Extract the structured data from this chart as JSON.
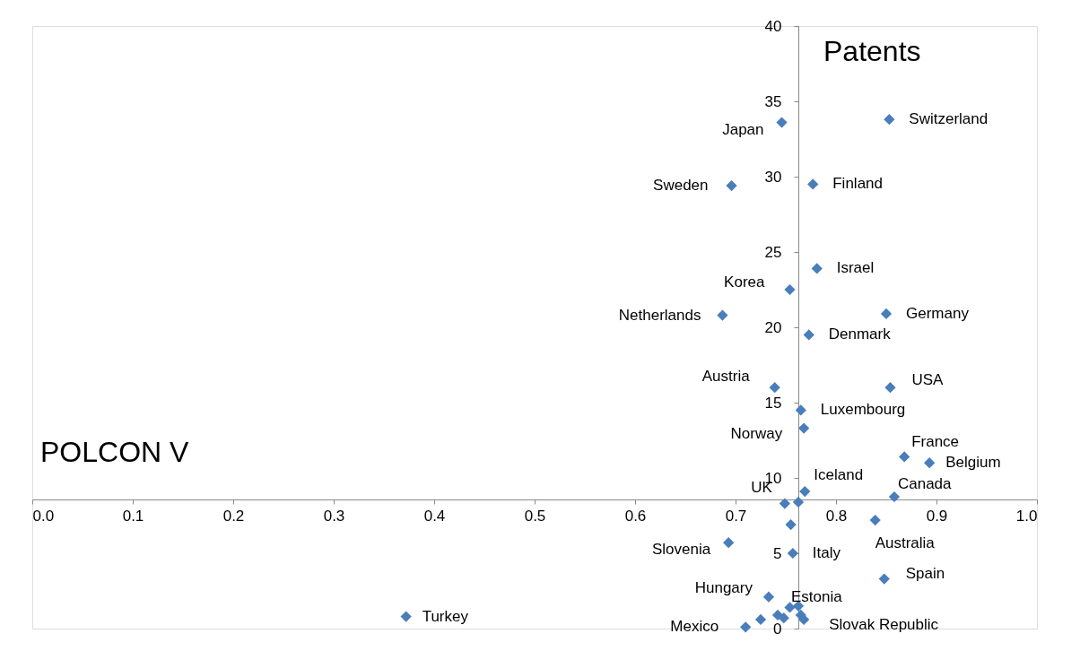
{
  "chart_data": {
    "type": "scatter",
    "xlabel": "POLCON V",
    "ylabel": "Patents",
    "xlim": [
      0,
      1
    ],
    "ylim": [
      0,
      40
    ],
    "xticks": [
      {
        "value": 0,
        "label": "0.0"
      },
      {
        "value": 0.1,
        "label": "0.1"
      },
      {
        "value": 0.2,
        "label": "0.2"
      },
      {
        "value": 0.3,
        "label": "0.3"
      },
      {
        "value": 0.4,
        "label": "0.4"
      },
      {
        "value": 0.5,
        "label": "0.5"
      },
      {
        "value": 0.6,
        "label": "0.6"
      },
      {
        "value": 0.7,
        "label": "0.7"
      },
      {
        "value": 0.8,
        "label": "0.8"
      },
      {
        "value": 0.9,
        "label": "0.9"
      },
      {
        "value": 1,
        "label": "1.0"
      }
    ],
    "yticks": [
      0,
      5,
      10,
      15,
      20,
      25,
      30,
      35,
      40
    ],
    "grid": false,
    "marker": "diamond",
    "series": [
      {
        "color": "#4a7ebb",
        "x": [
          0.853,
          0.746,
          0.696,
          0.777,
          0.781,
          0.754,
          0.687,
          0.85,
          0.773,
          0.739,
          0.854,
          0.765,
          0.768,
          0.868,
          0.893,
          0.769,
          0.858,
          0.749,
          0.7625,
          0.755,
          0.839,
          0.693,
          0.757,
          0.848,
          0.733,
          0.7625,
          0.372,
          0.71,
          0.768,
          0.725,
          0.742,
          0.748,
          0.754,
          0.765
        ],
        "values": [
          33.8,
          33.6,
          29.4,
          29.5,
          23.9,
          22.5,
          20.8,
          20.9,
          19.5,
          16.0,
          16.0,
          14.5,
          13.3,
          11.4,
          11.0,
          9.1,
          8.75,
          8.3,
          8.4,
          6.9,
          7.2,
          5.7,
          5.0,
          3.3,
          2.1,
          1.5,
          0.8,
          0.1,
          0.6,
          0.6,
          0.9,
          0.7,
          1.4,
          0.9
        ]
      }
    ],
    "annotations": [
      {
        "text": "Switzerland",
        "x": 0.853,
        "y": 33.8
      },
      {
        "text": "Japan",
        "x": 0.746,
        "y": 33.6
      },
      {
        "text": "Sweden",
        "x": 0.696,
        "y": 29.4
      },
      {
        "text": "Finland",
        "x": 0.777,
        "y": 29.5
      },
      {
        "text": "Israel",
        "x": 0.781,
        "y": 23.9
      },
      {
        "text": "Korea",
        "x": 0.754,
        "y": 22.5
      },
      {
        "text": "Netherlands",
        "x": 0.687,
        "y": 20.8
      },
      {
        "text": "Germany",
        "x": 0.85,
        "y": 20.9
      },
      {
        "text": "Denmark",
        "x": 0.773,
        "y": 19.5
      },
      {
        "text": "Austria",
        "x": 0.739,
        "y": 16.0
      },
      {
        "text": "USA",
        "x": 0.854,
        "y": 16.0
      },
      {
        "text": "Luxembourg",
        "x": 0.765,
        "y": 14.5
      },
      {
        "text": "Norway",
        "x": 0.768,
        "y": 13.3
      },
      {
        "text": "France",
        "x": 0.868,
        "y": 11.4
      },
      {
        "text": "Belgium",
        "x": 0.893,
        "y": 11.0
      },
      {
        "text": "Iceland",
        "x": 0.769,
        "y": 9.1
      },
      {
        "text": "Canada",
        "x": 0.858,
        "y": 8.75
      },
      {
        "text": "UK",
        "x": 0.749,
        "y": 8.3
      },
      {
        "text": "Australia",
        "x": 0.839,
        "y": 7.2
      },
      {
        "text": "Slovenia",
        "x": 0.693,
        "y": 5.7
      },
      {
        "text": "Italy",
        "x": 0.757,
        "y": 5.0
      },
      {
        "text": "Spain",
        "x": 0.848,
        "y": 3.3
      },
      {
        "text": "Hungary",
        "x": 0.733,
        "y": 2.1
      },
      {
        "text": "Estonia",
        "x": 0.7625,
        "y": 1.5
      },
      {
        "text": "Turkey",
        "x": 0.372,
        "y": 0.8
      },
      {
        "text": "Mexico",
        "x": 0.71,
        "y": 0.1
      },
      {
        "text": "Slovak Republic",
        "x": 0.768,
        "y": 0.6
      }
    ]
  }
}
